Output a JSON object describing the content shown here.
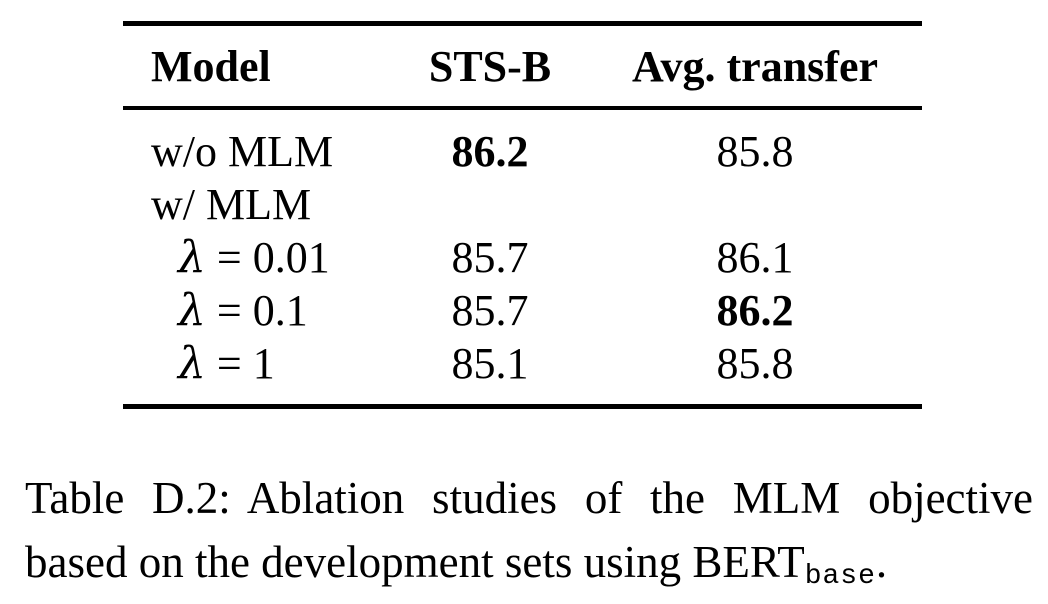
{
  "colors": {
    "text": "#000000",
    "background": "#ffffff"
  },
  "table": {
    "headers": [
      {
        "label": "Model"
      },
      {
        "label": "STS-B"
      },
      {
        "label": "Avg. transfer"
      }
    ],
    "rows": [
      {
        "model": {
          "text": "w/o MLM",
          "indent": false,
          "math": false
        },
        "cells": [
          {
            "text": "86.2",
            "bold": true
          },
          {
            "text": "85.8",
            "bold": false
          }
        ]
      },
      {
        "model": {
          "text": "w/ MLM",
          "indent": false,
          "math": false
        },
        "cells": [
          {
            "text": "",
            "bold": false
          },
          {
            "text": "",
            "bold": false
          }
        ]
      },
      {
        "model": {
          "text": "λ = 0.01",
          "indent": true,
          "math": true
        },
        "cells": [
          {
            "text": "85.7",
            "bold": false
          },
          {
            "text": "86.1",
            "bold": false
          }
        ]
      },
      {
        "model": {
          "text": "λ = 0.1",
          "indent": true,
          "math": true
        },
        "cells": [
          {
            "text": "85.7",
            "bold": false
          },
          {
            "text": "86.2",
            "bold": true
          }
        ]
      },
      {
        "model": {
          "text": "λ = 1",
          "indent": true,
          "math": true
        },
        "cells": [
          {
            "text": "85.1",
            "bold": false
          },
          {
            "text": "85.8",
            "bold": false
          }
        ]
      }
    ]
  },
  "caption": {
    "label": "Table D.2:",
    "line1_rest": "Ablation studies of the MLM objective",
    "line2_pre": "based on the development sets using BERT",
    "subscript": "base",
    "line2_post": "."
  }
}
